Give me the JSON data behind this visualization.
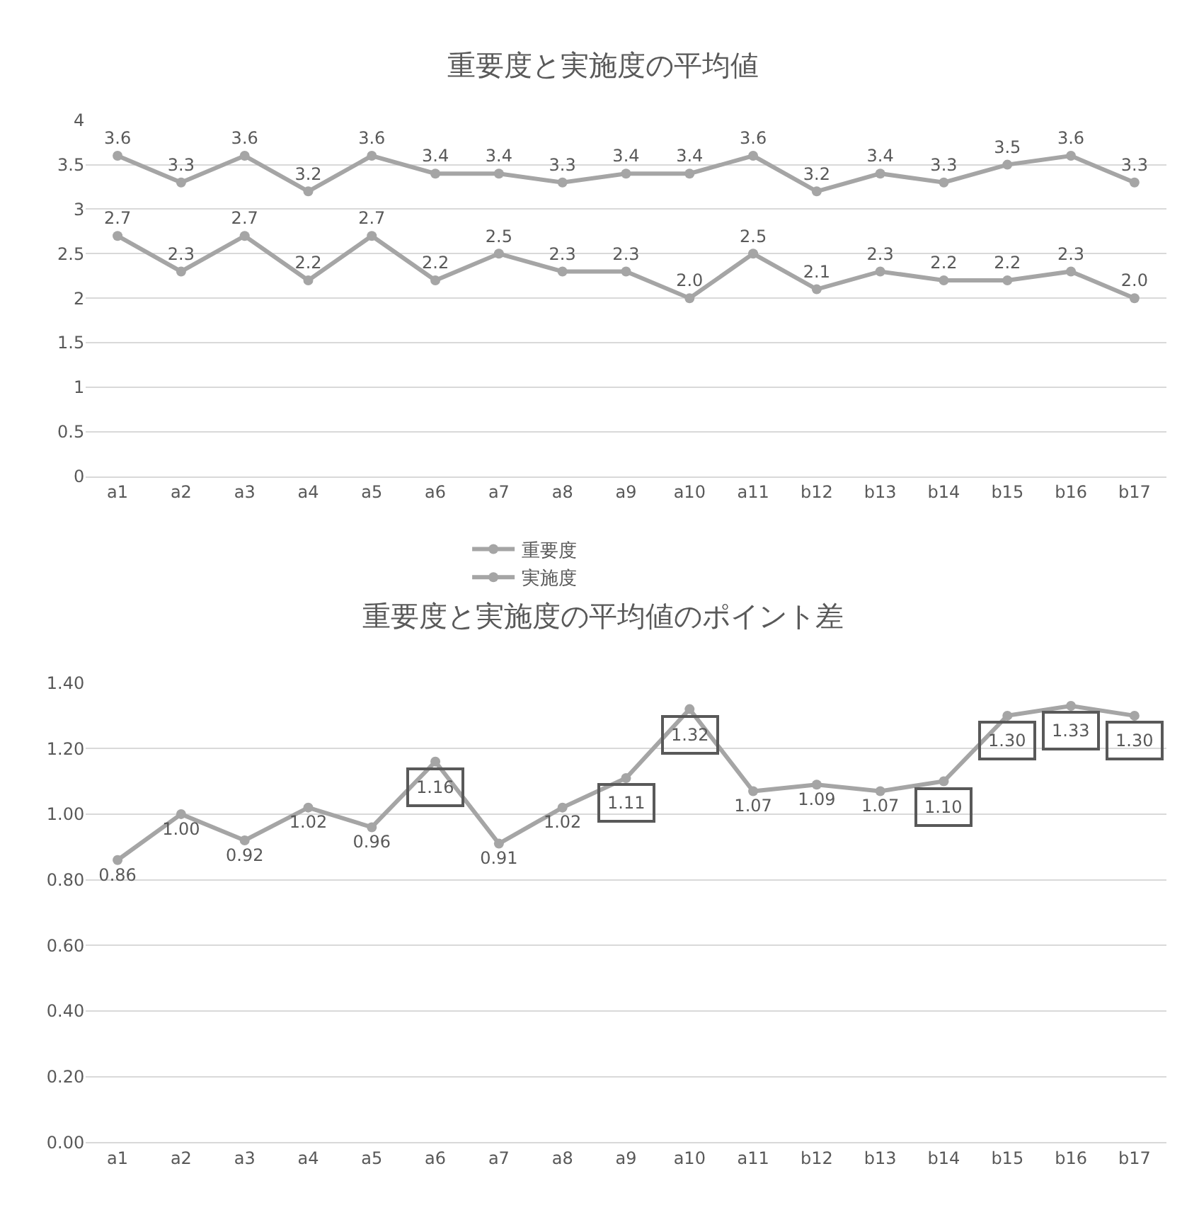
{
  "chart_data": [
    {
      "type": "line",
      "title": "重要度と実施度の平均値",
      "categories": [
        "a1",
        "a2",
        "a3",
        "a4",
        "a5",
        "a6",
        "a7",
        "a8",
        "a9",
        "a10",
        "a11",
        "b12",
        "b13",
        "b14",
        "b15",
        "b16",
        "b17"
      ],
      "series": [
        {
          "name": "重要度",
          "color": "#a5a5a5",
          "values": [
            3.6,
            3.3,
            3.6,
            3.2,
            3.6,
            3.4,
            3.4,
            3.3,
            3.4,
            3.4,
            3.6,
            3.2,
            3.4,
            3.3,
            3.5,
            3.6,
            3.3
          ],
          "value_labels": [
            "3.6",
            "3.3",
            "3.6",
            "3.2",
            "3.6",
            "3.4",
            "3.4",
            "3.3",
            "3.4",
            "3.4",
            "3.6",
            "3.2",
            "3.4",
            "3.3",
            "3.5",
            "3.6",
            "3.3"
          ]
        },
        {
          "name": "実施度",
          "color": "#a5a5a5",
          "values": [
            2.7,
            2.3,
            2.7,
            2.2,
            2.7,
            2.2,
            2.5,
            2.3,
            2.3,
            2.0,
            2.5,
            2.1,
            2.3,
            2.2,
            2.2,
            2.3,
            2.0
          ],
          "value_labels": [
            "2.7",
            "2.3",
            "2.7",
            "2.2",
            "2.7",
            "2.2",
            "2.5",
            "2.3",
            "2.3",
            "2.0",
            "2.5",
            "2.1",
            "2.3",
            "2.2",
            "2.2",
            "2.3",
            "2.0"
          ]
        }
      ],
      "ylim": [
        0,
        4
      ],
      "yticks": [
        0,
        0.5,
        1,
        1.5,
        2,
        2.5,
        3,
        3.5,
        4
      ],
      "grid": "y",
      "legend": "bottom",
      "marker": "circle",
      "line_style": "solid"
    },
    {
      "type": "line",
      "title": "重要度と実施度の平均値のポイント差",
      "categories": [
        "a1",
        "a2",
        "a3",
        "a4",
        "a5",
        "a6",
        "a7",
        "a8",
        "a9",
        "a10",
        "a11",
        "b12",
        "b13",
        "b14",
        "b15",
        "b16",
        "b17"
      ],
      "series": [
        {
          "color": "#a5a5a5",
          "values": [
            0.86,
            1.0,
            0.92,
            1.02,
            0.96,
            1.16,
            0.91,
            1.02,
            1.11,
            1.32,
            1.07,
            1.09,
            1.07,
            1.1,
            1.3,
            1.33,
            1.3
          ],
          "value_labels": [
            "0.86",
            "1.00",
            "0.92",
            "1.02",
            "0.96",
            null,
            "0.91",
            "1.02",
            null,
            null,
            "1.07",
            "1.09",
            "1.07",
            null,
            null,
            null,
            null
          ]
        }
      ],
      "annotations": [
        {
          "text": "1.16",
          "x": "a6",
          "y": 1.16
        },
        {
          "text": "1.11",
          "x": "a9",
          "y": 1.11
        },
        {
          "text": "1.32",
          "x": "a10",
          "y": 1.32
        },
        {
          "text": "1.10",
          "x": "b14",
          "y": 1.1
        },
        {
          "text": "1.30",
          "x": "b15",
          "y": 1.3
        },
        {
          "text": "1.33",
          "x": "b16",
          "y": 1.33
        },
        {
          "text": "1.30",
          "x": "b17",
          "y": 1.3
        }
      ],
      "ylim": [
        0,
        1.4
      ],
      "yticks": [
        {
          "value": 0,
          "label": "0.00"
        },
        {
          "value": 0.2,
          "label": "0.20"
        },
        {
          "value": 0.4,
          "label": "0.40"
        },
        {
          "value": 0.6,
          "label": "0.60"
        },
        {
          "value": 0.8,
          "label": "0.80"
        },
        {
          "value": 1.0,
          "label": "1.00"
        },
        {
          "value": 1.2,
          "label": "1.20"
        },
        {
          "value": 1.4,
          "label": "1.40"
        }
      ],
      "grid": "y",
      "marker": "circle",
      "line_style": "solid"
    }
  ]
}
